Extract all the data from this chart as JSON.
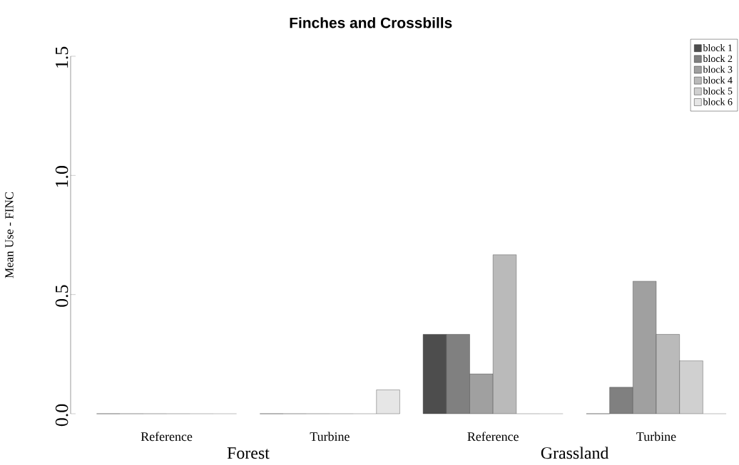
{
  "chart_data": {
    "type": "bar",
    "title": "Finches and Crossbills",
    "ylabel": "Mean Use - FINC",
    "categories": [
      "Reference",
      "Turbine",
      "Reference",
      "Turbine"
    ],
    "annotations": [
      "Forest",
      "Grassland"
    ],
    "series": [
      {
        "name": "block 1",
        "color": "#4d4d4d",
        "values": [
          0,
          0,
          0.333,
          0
        ]
      },
      {
        "name": "block 2",
        "color": "#808080",
        "values": [
          0,
          0,
          0.333,
          0.111
        ]
      },
      {
        "name": "block 3",
        "color": "#a0a0a0",
        "values": [
          0,
          0,
          0.167,
          0.556
        ]
      },
      {
        "name": "block 4",
        "color": "#bababa",
        "values": [
          0,
          0,
          0.667,
          0.333
        ]
      },
      {
        "name": "block 5",
        "color": "#d0d0d0",
        "values": [
          0,
          0,
          0,
          0.222
        ]
      },
      {
        "name": "block 6",
        "color": "#e6e6e6",
        "values": [
          0,
          0.1,
          0,
          0
        ]
      }
    ],
    "ylim": [
      0,
      1.5
    ],
    "yticks": [
      {
        "value": 0,
        "label": "0.0"
      },
      0.5,
      {
        "value": 1,
        "label": "1.0"
      },
      1.5
    ],
    "legend": "top right"
  }
}
